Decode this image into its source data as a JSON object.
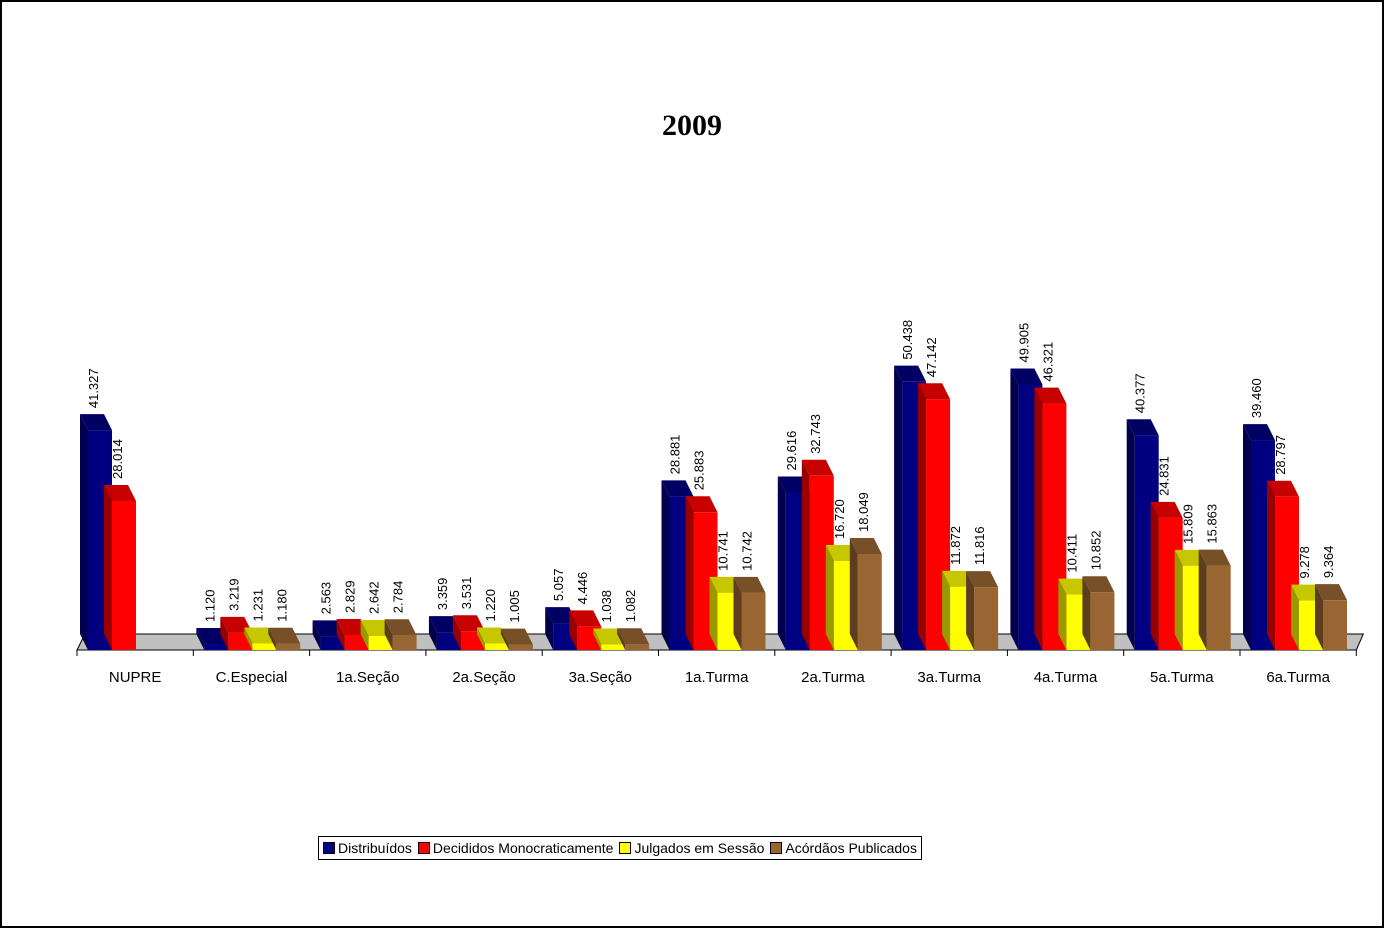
{
  "chart_data": {
    "type": "bar",
    "title": "2009",
    "categories": [
      "NUPRE",
      "C.Especial",
      "1a.Seção",
      "2a.Seção",
      "3a.Seção",
      "1a.Turma",
      "2a.Turma",
      "3a.Turma",
      "4a.Turma",
      "5a.Turma",
      "6a.Turma"
    ],
    "series": [
      {
        "name": "Distribuídos",
        "color": "#000080",
        "values": [
          41327,
          1120,
          2563,
          3359,
          5057,
          28881,
          29616,
          50438,
          49905,
          40377,
          39460
        ],
        "labels": [
          "41.327",
          "1.120",
          "2.563",
          "3.359",
          "5.057",
          "28.881",
          "29.616",
          "50.438",
          "49.905",
          "40.377",
          "39.460"
        ]
      },
      {
        "name": "Decididos Monocraticamente",
        "color": "#ff0000",
        "values": [
          28014,
          3219,
          2829,
          3531,
          4446,
          25883,
          32743,
          47142,
          46321,
          24831,
          28797
        ],
        "labels": [
          "28.014",
          "3.219",
          "2.829",
          "3.531",
          "4.446",
          "25.883",
          "32.743",
          "47.142",
          "46.321",
          "24.831",
          "28.797"
        ]
      },
      {
        "name": "Julgados em Sessão",
        "color": "#ffff00",
        "values": [
          null,
          1231,
          2642,
          1220,
          1038,
          10741,
          16720,
          11872,
          10411,
          15809,
          9278
        ],
        "labels": [
          "",
          "1.231",
          "2.642",
          "1.220",
          "1.038",
          "10.741",
          "16.720",
          "11.872",
          "10.411",
          "15.809",
          "9.278"
        ]
      },
      {
        "name": "Acórdãos Publicados",
        "color": "#996633",
        "values": [
          null,
          1180,
          2784,
          1005,
          1082,
          10742,
          18049,
          11816,
          10852,
          15863,
          9364
        ],
        "labels": [
          "",
          "1.180",
          "2.784",
          "1.005",
          "1.082",
          "10.742",
          "18.049",
          "11.816",
          "10.852",
          "15.863",
          "9.364"
        ]
      }
    ],
    "legend_position": "bottom",
    "grid": false,
    "style": "3d-clustered-bar"
  }
}
